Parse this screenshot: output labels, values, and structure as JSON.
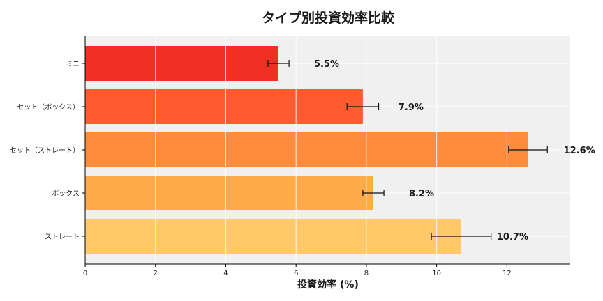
{
  "chart_data": {
    "type": "bar",
    "orientation": "horizontal",
    "title": "タイプ別投資効率比較",
    "xlabel": "投資効率 (%)",
    "ylabel": "",
    "categories": [
      "ミニ",
      "セット（ボックス）",
      "セット（ストレート）",
      "ボックス",
      "ストレート"
    ],
    "values": [
      5.5,
      7.9,
      12.6,
      8.2,
      10.7
    ],
    "value_labels": [
      "5.5%",
      "7.9%",
      "12.6%",
      "8.2%",
      "10.7%"
    ],
    "errors": [
      0.3,
      0.45,
      0.55,
      0.3,
      0.85
    ],
    "colors": [
      "#f03023",
      "#ff5a30",
      "#ff8c3c",
      "#ffab4a",
      "#ffc868"
    ],
    "xlim": [
      0,
      13.8
    ],
    "xticks": [
      0,
      2,
      4,
      6,
      8,
      10,
      12
    ],
    "grid": true,
    "legend": false
  }
}
